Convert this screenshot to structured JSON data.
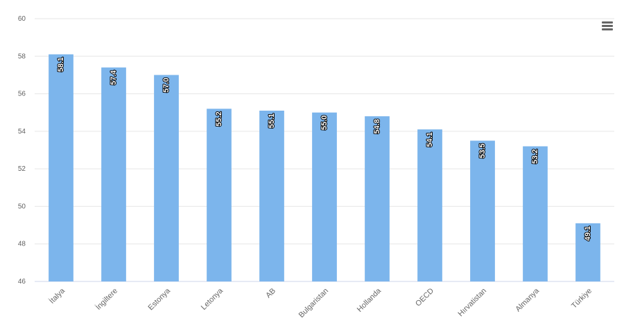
{
  "chart_data": {
    "type": "bar",
    "categories": [
      "İtalya",
      "İngiltere",
      "Estonya",
      "Letonya",
      "AB",
      "Bulgaristan",
      "Hollanda",
      "OECD",
      "Hırvatistan",
      "Almanya",
      "Türkiye"
    ],
    "values": [
      58.1,
      57.4,
      57.0,
      55.2,
      55.1,
      55.0,
      54.8,
      54.1,
      53.5,
      53.2,
      49.1
    ],
    "data_labels": [
      "58.1",
      "57.4",
      "57.0",
      "55.2",
      "55.1",
      "55.0",
      "54.8",
      "54.1",
      "53.5",
      "53.2",
      "49.1"
    ],
    "ylim": [
      46,
      60
    ],
    "yticks": [
      46,
      48,
      50,
      52,
      54,
      56,
      58,
      60
    ],
    "grid": true,
    "colors": {
      "bar": "#7cb5ec",
      "grid": "#e6e6e6",
      "axis_text": "#666666",
      "tick_text": "#606060",
      "label_fill": "#ffffff",
      "label_stroke": "#000000"
    }
  },
  "toolbar": {
    "menu_icon": "hamburger-menu-icon"
  }
}
